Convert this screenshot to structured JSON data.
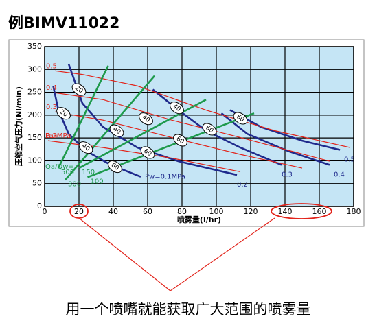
{
  "chart_data": {
    "type": "line",
    "title": "例BIMV11022",
    "caption": "用一个喷嘴就能获取广大范围的喷雾量",
    "x_label": "喷雾量(l/hr)",
    "y_label": "压缩空气压力(Nl/min)",
    "xlim": [
      0,
      180
    ],
    "ylim": [
      0,
      350
    ],
    "xticks": [
      0,
      20,
      40,
      60,
      80,
      100,
      120,
      140,
      160,
      180
    ],
    "yticks": [
      0,
      50,
      100,
      150,
      200,
      250,
      300,
      350
    ],
    "grid": true,
    "series": [
      {
        "name": "Pw=0.1MPa",
        "group": "blue",
        "color": "#1f2a8c",
        "x": [
          5,
          8,
          14,
          24,
          38,
          56
        ],
        "values": [
          264,
          211,
          159,
          122,
          92,
          65
        ]
      },
      {
        "name": "0.2",
        "group": "blue",
        "color": "#1f2a8c",
        "x": [
          14,
          22,
          34,
          54,
          78,
          112
        ],
        "values": [
          312,
          226,
          174,
          129,
          99,
          69
        ]
      },
      {
        "name": "0.3",
        "group": "blue",
        "color": "#1f2a8c",
        "x": [
          63,
          78,
          94,
          114,
          138
        ],
        "values": [
          256,
          211,
          166,
          129,
          91
        ]
      },
      {
        "name": "0.4",
        "group": "blue",
        "color": "#1f2a8c",
        "x": [
          103,
          118,
          142,
          166
        ],
        "values": [
          204,
          159,
          121,
          91
        ]
      },
      {
        "name": "0.5",
        "group": "blue",
        "color": "#1f2a8c",
        "x": [
          108,
          126,
          150,
          172
        ],
        "values": [
          211,
          174,
          144,
          124
        ]
      },
      {
        "name": "0.5",
        "group": "red",
        "color": "#e2231a",
        "x": [
          6,
          22,
          54,
          94,
          134,
          178
        ],
        "values": [
          297,
          289,
          264,
          211,
          166,
          129
        ]
      },
      {
        "name": "0.4",
        "group": "red",
        "color": "#e2231a",
        "x": [
          6,
          34,
          74,
          114,
          166
        ],
        "values": [
          249,
          234,
          189,
          151,
          99
        ]
      },
      {
        "name": "0.3",
        "group": "red",
        "color": "#e2231a",
        "x": [
          6,
          34,
          74,
          114,
          150
        ],
        "values": [
          207,
          189,
          151,
          114,
          84
        ]
      },
      {
        "name": "0.2MPa",
        "group": "red",
        "color": "#e2231a",
        "x": [
          2,
          34,
          74,
          114
        ],
        "values": [
          144,
          129,
          106,
          76
        ]
      },
      {
        "name": "500",
        "group": "green",
        "color": "#1e9a4c",
        "x": [
          8,
          37
        ],
        "values": [
          84,
          308
        ]
      },
      {
        "name": "300",
        "group": "green",
        "color": "#1e9a4c",
        "x": [
          12,
          64
        ],
        "values": [
          58,
          286
        ]
      },
      {
        "name": "150",
        "group": "green",
        "color": "#1e9a4c",
        "x": [
          20,
          94
        ],
        "values": [
          84,
          234
        ]
      },
      {
        "name": "100",
        "group": "green",
        "color": "#1e9a4c",
        "x": [
          25,
          122
        ],
        "values": [
          64,
          204
        ]
      }
    ],
    "annotations": [
      {
        "text": "Pa=",
        "x": 0,
        "y": 155,
        "color": "#e2231a"
      },
      {
        "text": "Qa/Qw=",
        "x": 0,
        "y": 87,
        "color": "#1e9a4c"
      }
    ],
    "markers": [
      {
        "text": "20",
        "x": 20,
        "y": 256
      },
      {
        "text": "20",
        "x": 11,
        "y": 204
      },
      {
        "text": "40",
        "x": 24,
        "y": 129
      },
      {
        "text": "60",
        "x": 41,
        "y": 87
      },
      {
        "text": "40",
        "x": 42,
        "y": 166
      },
      {
        "text": "60",
        "x": 60,
        "y": 118
      },
      {
        "text": "40",
        "x": 59,
        "y": 192
      },
      {
        "text": "60",
        "x": 79,
        "y": 145
      },
      {
        "text": "40",
        "x": 77,
        "y": 216
      },
      {
        "text": "60",
        "x": 96,
        "y": 169
      },
      {
        "text": "60",
        "x": 114,
        "y": 193
      }
    ]
  }
}
